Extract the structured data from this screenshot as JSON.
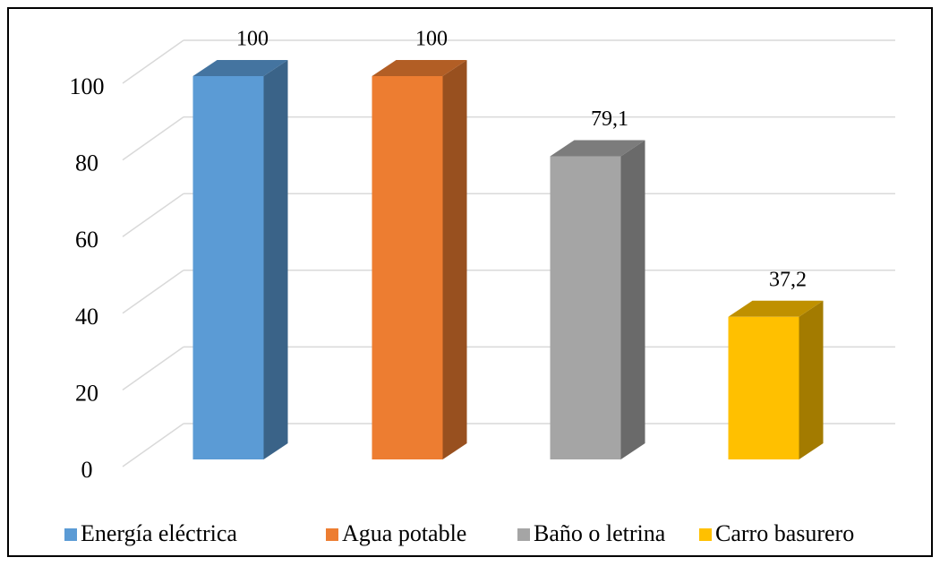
{
  "chart_data": {
    "type": "bar3d",
    "categories": [
      null
    ],
    "series": [
      {
        "name": "Energía eléctrica",
        "color": "#5b9bd5",
        "values": [
          100
        ]
      },
      {
        "name": "Agua potable",
        "color": "#ed7d31",
        "values": [
          100
        ]
      },
      {
        "name": "Baño o letrina",
        "color": "#a5a5a5",
        "values": [
          79.1
        ],
        "value_labels": [
          "79,1"
        ]
      },
      {
        "name": "Carro basurero",
        "color": "#ffc000",
        "values": [
          37.2
        ],
        "value_labels": [
          "37,2"
        ]
      }
    ],
    "ylim": [
      0,
      100
    ],
    "yticks": [
      0,
      20,
      40,
      60,
      80,
      100
    ],
    "grid": true,
    "legend": "bottom"
  }
}
